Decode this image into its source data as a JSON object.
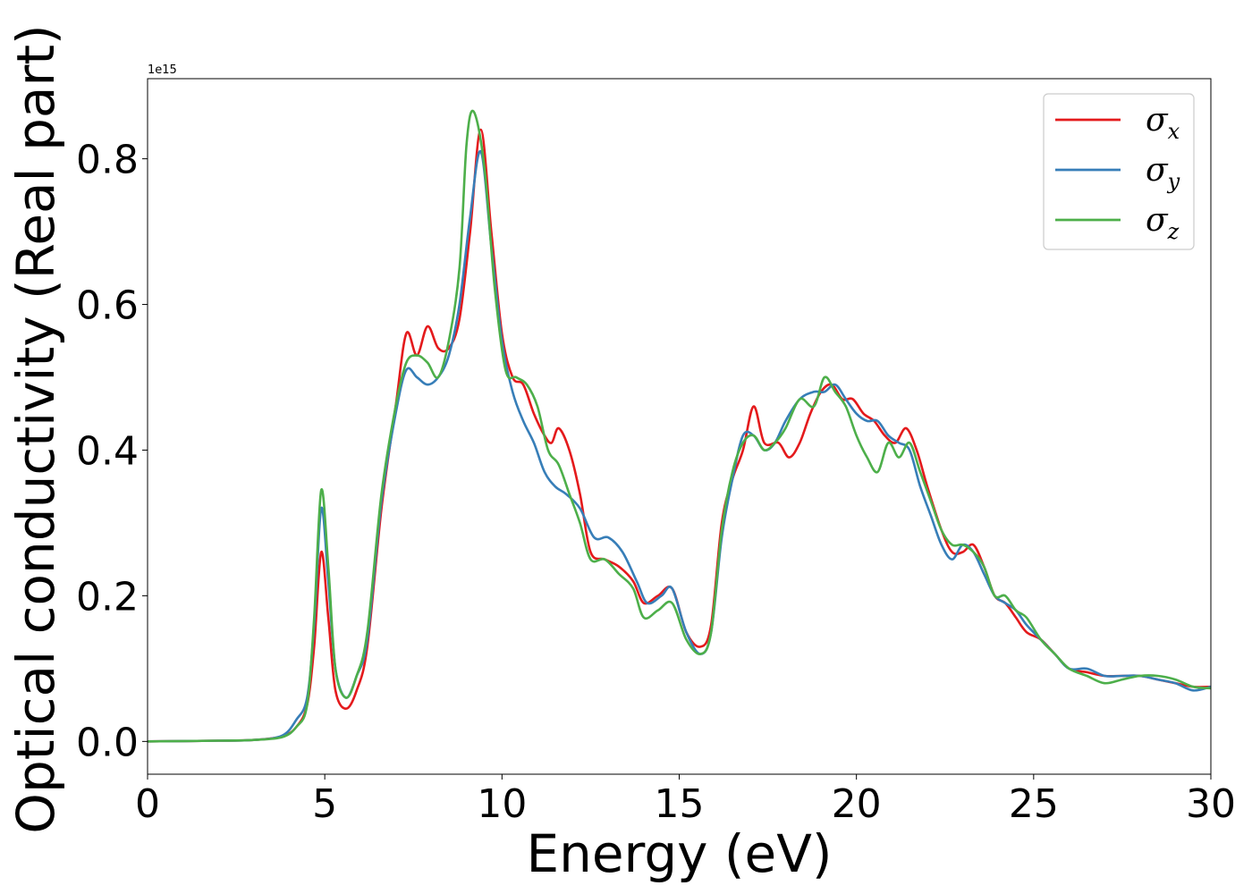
{
  "chart_data": {
    "type": "line",
    "xlabel": "Energy (eV)",
    "ylabel": "Optical conductivity (Real part)",
    "y_offset_label": "1e15",
    "xlim": [
      0,
      30
    ],
    "ylim": [
      -0.045,
      0.91
    ],
    "xticks": [
      0,
      5,
      10,
      15,
      20,
      25,
      30
    ],
    "xtick_labels": [
      "0",
      "5",
      "10",
      "15",
      "20",
      "25",
      "30"
    ],
    "yticks": [
      0.0,
      0.2,
      0.4,
      0.6,
      0.8
    ],
    "ytick_labels": [
      "0.0",
      "0.2",
      "0.4",
      "0.6",
      "0.8"
    ],
    "grid": false,
    "legend_position": "top-right",
    "series": [
      {
        "name": "σx",
        "symbol": "σ",
        "subscript": "x",
        "color": "#e41a1c",
        "points": [
          [
            0,
            0
          ],
          [
            2,
            0.001
          ],
          [
            3,
            0.002
          ],
          [
            3.8,
            0.007
          ],
          [
            4.2,
            0.02
          ],
          [
            4.5,
            0.05
          ],
          [
            4.7,
            0.13
          ],
          [
            4.9,
            0.26
          ],
          [
            5.1,
            0.17
          ],
          [
            5.3,
            0.07
          ],
          [
            5.6,
            0.045
          ],
          [
            5.9,
            0.07
          ],
          [
            6.2,
            0.13
          ],
          [
            6.6,
            0.32
          ],
          [
            7.0,
            0.46
          ],
          [
            7.3,
            0.56
          ],
          [
            7.6,
            0.53
          ],
          [
            7.9,
            0.57
          ],
          [
            8.2,
            0.54
          ],
          [
            8.5,
            0.54
          ],
          [
            8.8,
            0.58
          ],
          [
            9.1,
            0.7
          ],
          [
            9.4,
            0.84
          ],
          [
            9.7,
            0.7
          ],
          [
            10.0,
            0.56
          ],
          [
            10.3,
            0.5
          ],
          [
            10.6,
            0.49
          ],
          [
            10.9,
            0.45
          ],
          [
            11.2,
            0.42
          ],
          [
            11.4,
            0.41
          ],
          [
            11.6,
            0.43
          ],
          [
            11.9,
            0.4
          ],
          [
            12.2,
            0.34
          ],
          [
            12.5,
            0.26
          ],
          [
            12.9,
            0.25
          ],
          [
            13.3,
            0.24
          ],
          [
            13.7,
            0.22
          ],
          [
            14.0,
            0.19
          ],
          [
            14.4,
            0.2
          ],
          [
            14.8,
            0.21
          ],
          [
            15.2,
            0.15
          ],
          [
            15.6,
            0.13
          ],
          [
            15.9,
            0.16
          ],
          [
            16.2,
            0.3
          ],
          [
            16.5,
            0.36
          ],
          [
            16.8,
            0.4
          ],
          [
            17.1,
            0.46
          ],
          [
            17.4,
            0.41
          ],
          [
            17.8,
            0.41
          ],
          [
            18.1,
            0.39
          ],
          [
            18.4,
            0.41
          ],
          [
            18.7,
            0.45
          ],
          [
            19.0,
            0.48
          ],
          [
            19.3,
            0.49
          ],
          [
            19.6,
            0.47
          ],
          [
            19.9,
            0.47
          ],
          [
            20.2,
            0.45
          ],
          [
            20.5,
            0.44
          ],
          [
            20.8,
            0.42
          ],
          [
            21.1,
            0.41
          ],
          [
            21.4,
            0.43
          ],
          [
            21.7,
            0.4
          ],
          [
            22.0,
            0.35
          ],
          [
            22.4,
            0.29
          ],
          [
            22.7,
            0.26
          ],
          [
            23.0,
            0.26
          ],
          [
            23.3,
            0.27
          ],
          [
            23.6,
            0.24
          ],
          [
            23.9,
            0.2
          ],
          [
            24.2,
            0.19
          ],
          [
            24.5,
            0.17
          ],
          [
            24.8,
            0.15
          ],
          [
            25.2,
            0.14
          ],
          [
            25.6,
            0.12
          ],
          [
            26.0,
            0.1
          ],
          [
            26.5,
            0.095
          ],
          [
            27.0,
            0.09
          ],
          [
            27.5,
            0.09
          ],
          [
            28.0,
            0.09
          ],
          [
            28.5,
            0.085
          ],
          [
            29.0,
            0.08
          ],
          [
            29.5,
            0.075
          ],
          [
            30.0,
            0.075
          ]
        ]
      },
      {
        "name": "σy",
        "symbol": "σ",
        "subscript": "y",
        "color": "#377eb8",
        "points": [
          [
            0,
            0
          ],
          [
            2,
            0.001
          ],
          [
            3,
            0.002
          ],
          [
            3.8,
            0.008
          ],
          [
            4.2,
            0.03
          ],
          [
            4.5,
            0.06
          ],
          [
            4.7,
            0.16
          ],
          [
            4.9,
            0.32
          ],
          [
            5.1,
            0.22
          ],
          [
            5.3,
            0.1
          ],
          [
            5.6,
            0.06
          ],
          [
            5.9,
            0.09
          ],
          [
            6.2,
            0.14
          ],
          [
            6.6,
            0.33
          ],
          [
            7.0,
            0.45
          ],
          [
            7.3,
            0.51
          ],
          [
            7.6,
            0.5
          ],
          [
            7.9,
            0.49
          ],
          [
            8.2,
            0.5
          ],
          [
            8.5,
            0.53
          ],
          [
            8.8,
            0.6
          ],
          [
            9.1,
            0.72
          ],
          [
            9.4,
            0.81
          ],
          [
            9.7,
            0.68
          ],
          [
            10.0,
            0.55
          ],
          [
            10.3,
            0.48
          ],
          [
            10.6,
            0.44
          ],
          [
            10.9,
            0.41
          ],
          [
            11.2,
            0.37
          ],
          [
            11.5,
            0.35
          ],
          [
            11.8,
            0.34
          ],
          [
            12.2,
            0.32
          ],
          [
            12.6,
            0.28
          ],
          [
            13.0,
            0.28
          ],
          [
            13.4,
            0.26
          ],
          [
            13.8,
            0.22
          ],
          [
            14.1,
            0.19
          ],
          [
            14.5,
            0.2
          ],
          [
            14.8,
            0.21
          ],
          [
            15.2,
            0.15
          ],
          [
            15.6,
            0.12
          ],
          [
            15.9,
            0.15
          ],
          [
            16.2,
            0.28
          ],
          [
            16.5,
            0.36
          ],
          [
            16.8,
            0.42
          ],
          [
            17.1,
            0.42
          ],
          [
            17.4,
            0.4
          ],
          [
            17.7,
            0.41
          ],
          [
            18.0,
            0.44
          ],
          [
            18.4,
            0.47
          ],
          [
            18.8,
            0.48
          ],
          [
            19.1,
            0.48
          ],
          [
            19.4,
            0.49
          ],
          [
            19.7,
            0.47
          ],
          [
            20.0,
            0.45
          ],
          [
            20.3,
            0.44
          ],
          [
            20.6,
            0.44
          ],
          [
            20.9,
            0.42
          ],
          [
            21.2,
            0.41
          ],
          [
            21.5,
            0.4
          ],
          [
            21.8,
            0.35
          ],
          [
            22.1,
            0.31
          ],
          [
            22.4,
            0.27
          ],
          [
            22.7,
            0.25
          ],
          [
            23.0,
            0.27
          ],
          [
            23.3,
            0.26
          ],
          [
            23.6,
            0.23
          ],
          [
            23.9,
            0.2
          ],
          [
            24.2,
            0.19
          ],
          [
            24.5,
            0.18
          ],
          [
            24.8,
            0.16
          ],
          [
            25.2,
            0.14
          ],
          [
            25.6,
            0.12
          ],
          [
            26.0,
            0.1
          ],
          [
            26.5,
            0.1
          ],
          [
            27.0,
            0.09
          ],
          [
            27.5,
            0.09
          ],
          [
            28.0,
            0.09
          ],
          [
            28.5,
            0.085
          ],
          [
            29.0,
            0.08
          ],
          [
            29.5,
            0.07
          ],
          [
            30.0,
            0.075
          ]
        ]
      },
      {
        "name": "σz",
        "symbol": "σ",
        "subscript": "z",
        "color": "#4daf4a",
        "points": [
          [
            0,
            0
          ],
          [
            2,
            0.001
          ],
          [
            3,
            0.002
          ],
          [
            3.8,
            0.006
          ],
          [
            4.2,
            0.02
          ],
          [
            4.5,
            0.05
          ],
          [
            4.7,
            0.17
          ],
          [
            4.9,
            0.345
          ],
          [
            5.1,
            0.24
          ],
          [
            5.3,
            0.1
          ],
          [
            5.6,
            0.06
          ],
          [
            5.9,
            0.09
          ],
          [
            6.2,
            0.15
          ],
          [
            6.6,
            0.34
          ],
          [
            7.0,
            0.46
          ],
          [
            7.3,
            0.52
          ],
          [
            7.6,
            0.53
          ],
          [
            7.9,
            0.52
          ],
          [
            8.2,
            0.5
          ],
          [
            8.5,
            0.55
          ],
          [
            8.8,
            0.65
          ],
          [
            9.0,
            0.82
          ],
          [
            9.2,
            0.865
          ],
          [
            9.5,
            0.79
          ],
          [
            9.8,
            0.62
          ],
          [
            10.1,
            0.51
          ],
          [
            10.4,
            0.5
          ],
          [
            10.7,
            0.49
          ],
          [
            11.0,
            0.46
          ],
          [
            11.3,
            0.4
          ],
          [
            11.6,
            0.38
          ],
          [
            11.9,
            0.34
          ],
          [
            12.2,
            0.3
          ],
          [
            12.5,
            0.25
          ],
          [
            12.9,
            0.25
          ],
          [
            13.3,
            0.23
          ],
          [
            13.7,
            0.21
          ],
          [
            14.0,
            0.17
          ],
          [
            14.4,
            0.18
          ],
          [
            14.8,
            0.19
          ],
          [
            15.2,
            0.14
          ],
          [
            15.6,
            0.12
          ],
          [
            15.9,
            0.15
          ],
          [
            16.2,
            0.29
          ],
          [
            16.5,
            0.37
          ],
          [
            16.8,
            0.41
          ],
          [
            17.1,
            0.42
          ],
          [
            17.4,
            0.4
          ],
          [
            17.7,
            0.41
          ],
          [
            18.0,
            0.43
          ],
          [
            18.4,
            0.47
          ],
          [
            18.8,
            0.46
          ],
          [
            19.1,
            0.5
          ],
          [
            19.4,
            0.48
          ],
          [
            19.7,
            0.46
          ],
          [
            20.0,
            0.42
          ],
          [
            20.3,
            0.39
          ],
          [
            20.6,
            0.37
          ],
          [
            20.9,
            0.41
          ],
          [
            21.2,
            0.39
          ],
          [
            21.5,
            0.41
          ],
          [
            21.8,
            0.37
          ],
          [
            22.1,
            0.33
          ],
          [
            22.4,
            0.29
          ],
          [
            22.7,
            0.27
          ],
          [
            23.0,
            0.27
          ],
          [
            23.3,
            0.26
          ],
          [
            23.6,
            0.24
          ],
          [
            23.9,
            0.2
          ],
          [
            24.2,
            0.2
          ],
          [
            24.5,
            0.18
          ],
          [
            24.8,
            0.17
          ],
          [
            25.2,
            0.14
          ],
          [
            25.6,
            0.12
          ],
          [
            26.0,
            0.1
          ],
          [
            26.5,
            0.09
          ],
          [
            27.0,
            0.08
          ],
          [
            27.5,
            0.085
          ],
          [
            28.0,
            0.09
          ],
          [
            28.5,
            0.09
          ],
          [
            29.0,
            0.085
          ],
          [
            29.5,
            0.075
          ],
          [
            30.0,
            0.073
          ]
        ]
      }
    ]
  }
}
